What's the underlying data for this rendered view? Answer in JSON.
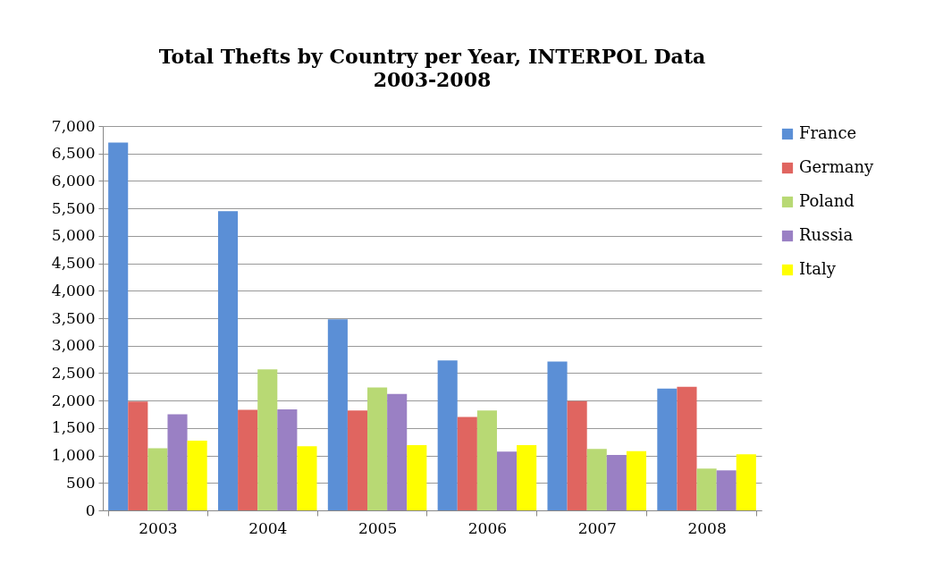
{
  "chart_data": {
    "type": "bar",
    "title": "Total Thefts by Country per Year, INTERPOL Data",
    "subtitle": "2003-2008",
    "categories": [
      "2003",
      "2004",
      "2005",
      "2006",
      "2007",
      "2008"
    ],
    "series": [
      {
        "name": "France",
        "color": "#5b8fd6",
        "values": [
          6700,
          5450,
          3480,
          2730,
          2710,
          2220
        ]
      },
      {
        "name": "Germany",
        "color": "#e06560",
        "values": [
          1980,
          1830,
          1820,
          1700,
          1990,
          2250
        ]
      },
      {
        "name": "Poland",
        "color": "#b8d974",
        "values": [
          1130,
          2570,
          2240,
          1820,
          1120,
          760
        ]
      },
      {
        "name": "Russia",
        "color": "#9a80c4",
        "values": [
          1750,
          1840,
          2120,
          1070,
          1010,
          730
        ]
      },
      {
        "name": "Italy",
        "color": "#ffff00",
        "values": [
          1270,
          1170,
          1190,
          1190,
          1080,
          1020
        ]
      }
    ],
    "ylim": [
      0,
      7000
    ],
    "yticks": [
      0,
      500,
      {
        "value": 1000,
        "label": "1,000"
      },
      {
        "value": 1500,
        "label": "1,500"
      },
      {
        "value": 2000,
        "label": "2,000"
      },
      {
        "value": 2500,
        "label": "2,500"
      },
      {
        "value": 3000,
        "label": "3,000"
      },
      {
        "value": 3500,
        "label": "3,500"
      },
      {
        "value": 4000,
        "label": "4,000"
      },
      {
        "value": 4500,
        "label": "4,500"
      },
      {
        "value": 5000,
        "label": "5,000"
      },
      {
        "value": 5500,
        "label": "5,500"
      },
      {
        "value": 6000,
        "label": "6,000"
      },
      {
        "value": 6500,
        "label": "6,500"
      },
      {
        "value": 7000,
        "label": "7,000"
      }
    ],
    "grid": true,
    "legend": "right"
  }
}
